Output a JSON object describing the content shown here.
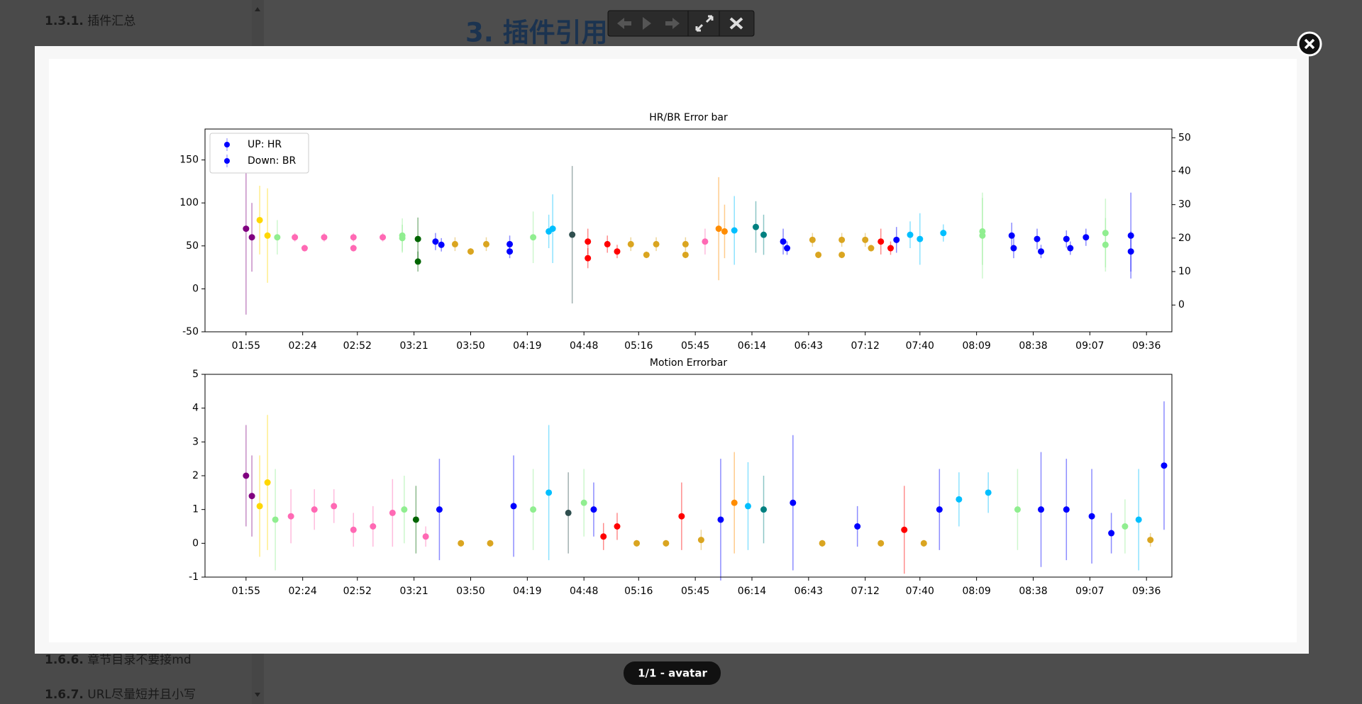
{
  "page": {
    "sidebar": [
      {
        "number": "1.3.1.",
        "title": "插件汇总"
      },
      {
        "number": "1.6.6.",
        "title": "章节目录不要接md"
      },
      {
        "number": "1.6.7.",
        "title": "URL尽量短并且小写"
      }
    ],
    "heading": "3. 插件引用",
    "caption": "1/1 - avatar"
  },
  "chart_data": [
    {
      "type": "scatter",
      "title": "HR/BR Error bar",
      "xlim": [
        94,
        589
      ],
      "ylim": [
        -50,
        186
      ],
      "y2lim": [
        -8,
        52.6
      ],
      "xticks": [
        {
          "value": 115,
          "label": "01:55"
        },
        {
          "value": 144,
          "label": "02:24"
        },
        {
          "value": 172,
          "label": "02:52"
        },
        {
          "value": 201,
          "label": "03:21"
        },
        {
          "value": 230,
          "label": "03:50"
        },
        {
          "value": 259,
          "label": "04:19"
        },
        {
          "value": 288,
          "label": "04:48"
        },
        {
          "value": 316,
          "label": "05:16"
        },
        {
          "value": 345,
          "label": "05:45"
        },
        {
          "value": 374,
          "label": "06:14"
        },
        {
          "value": 403,
          "label": "06:43"
        },
        {
          "value": 432,
          "label": "07:12"
        },
        {
          "value": 460,
          "label": "07:40"
        },
        {
          "value": 489,
          "label": "08:09"
        },
        {
          "value": 518,
          "label": "08:38"
        },
        {
          "value": 547,
          "label": "09:07"
        },
        {
          "value": 576,
          "label": "09:36"
        }
      ],
      "yticks": [
        -50,
        0,
        50,
        100,
        150
      ],
      "y2ticks": [
        0,
        10,
        20,
        30,
        40,
        50
      ],
      "legend": "upper left",
      "series": [
        {
          "name": "UP: HR",
          "color": "#0000ff",
          "x": [
            115,
            118,
            122,
            126,
            131,
            140,
            155,
            170,
            185,
            195,
            203,
            212,
            222,
            238,
            250,
            262,
            272,
            282,
            290,
            300,
            312,
            325,
            340,
            350,
            357,
            365,
            376,
            390,
            405,
            420,
            432,
            440,
            448,
            460,
            472,
            492,
            507,
            520,
            535,
            545,
            555,
            568
          ],
          "values": [
            70,
            60,
            80,
            62,
            60,
            60,
            60,
            60,
            60,
            62,
            58,
            55,
            52,
            52,
            52,
            60,
            70,
            63,
            55,
            52,
            52,
            52,
            52,
            55,
            70,
            68,
            72,
            55,
            57,
            57,
            57,
            55,
            57,
            58,
            65,
            62,
            62,
            58,
            58,
            60,
            65,
            62
          ],
          "errors": [
            100,
            40,
            40,
            55,
            20,
            5,
            5,
            5,
            5,
            20,
            25,
            10,
            8,
            8,
            10,
            30,
            40,
            80,
            15,
            10,
            8,
            8,
            8,
            15,
            60,
            40,
            30,
            15,
            8,
            8,
            8,
            15,
            15,
            30,
            10,
            50,
            15,
            12,
            10,
            10,
            40,
            50
          ],
          "point_colors": [
            "#800080",
            "#800080",
            "#ffd700",
            "#ffd700",
            "#90ee90",
            "#ff69b4",
            "#ff69b4",
            "#ff69b4",
            "#ff69b4",
            "#90ee90",
            "#006400",
            "#0000ff",
            "#daa520",
            "#daa520",
            "#0000ff",
            "#90ee90",
            "#00bfff",
            "#2f4f4f",
            "#ff0000",
            "#ff0000",
            "#daa520",
            "#daa520",
            "#daa520",
            "#ff69b4",
            "#ff8c00",
            "#00bfff",
            "#008080",
            "#0000ff",
            "#daa520",
            "#daa520",
            "#daa520",
            "#ff0000",
            "#0000ff",
            "#00bfff",
            "#00bfff",
            "#90ee90",
            "#0000ff",
            "#0000ff",
            "#0000ff",
            "#0000ff",
            "#90ee90",
            "#0000ff"
          ]
        },
        {
          "name": "Down: BR",
          "color": "#0000ff",
          "axis": "y2",
          "x": [
            145,
            170,
            195,
            203,
            215,
            230,
            250,
            270,
            290,
            305,
            320,
            340,
            360,
            380,
            392,
            408,
            420,
            435,
            445,
            455,
            492,
            508,
            522,
            537,
            555,
            568
          ],
          "values": [
            17,
            17,
            20,
            13,
            18,
            16,
            16,
            22,
            14,
            16,
            15,
            15,
            22,
            21,
            17,
            15,
            15,
            17,
            17,
            21,
            22,
            17,
            16,
            17,
            18,
            16
          ],
          "errors": [
            1,
            1,
            4,
            3,
            2,
            1,
            2,
            5,
            3,
            2,
            1,
            1,
            8,
            6,
            2,
            1,
            1,
            1,
            2,
            4,
            10,
            3,
            2,
            2,
            8,
            6
          ],
          "point_colors": [
            "#ff69b4",
            "#ff69b4",
            "#90ee90",
            "#006400",
            "#0000ff",
            "#daa520",
            "#0000ff",
            "#00bfff",
            "#ff0000",
            "#ff0000",
            "#daa520",
            "#daa520",
            "#ff8c00",
            "#008080",
            "#0000ff",
            "#daa520",
            "#daa520",
            "#daa520",
            "#ff0000",
            "#00bfff",
            "#90ee90",
            "#0000ff",
            "#0000ff",
            "#0000ff",
            "#90ee90",
            "#0000ff"
          ]
        }
      ]
    },
    {
      "type": "scatter",
      "title": "Motion Errorbar",
      "xlim": [
        94,
        589
      ],
      "ylim": [
        -1,
        5
      ],
      "xticks": [
        {
          "value": 115,
          "label": "01:55"
        },
        {
          "value": 144,
          "label": "02:24"
        },
        {
          "value": 172,
          "label": "02:52"
        },
        {
          "value": 201,
          "label": "03:21"
        },
        {
          "value": 230,
          "label": "03:50"
        },
        {
          "value": 259,
          "label": "04:19"
        },
        {
          "value": 288,
          "label": "04:48"
        },
        {
          "value": 316,
          "label": "05:16"
        },
        {
          "value": 345,
          "label": "05:45"
        },
        {
          "value": 374,
          "label": "06:14"
        },
        {
          "value": 403,
          "label": "06:43"
        },
        {
          "value": 432,
          "label": "07:12"
        },
        {
          "value": 460,
          "label": "07:40"
        },
        {
          "value": 489,
          "label": "08:09"
        },
        {
          "value": 518,
          "label": "08:38"
        },
        {
          "value": 547,
          "label": "09:07"
        },
        {
          "value": 576,
          "label": "09:36"
        }
      ],
      "yticks": [
        -1,
        0,
        1,
        2,
        3,
        4,
        5
      ],
      "series": [
        {
          "name": "Motion",
          "color": "#0000ff",
          "x": [
            115,
            118,
            122,
            126,
            130,
            138,
            150,
            160,
            170,
            180,
            190,
            196,
            202,
            207,
            214,
            225,
            240,
            252,
            262,
            270,
            280,
            288,
            293,
            298,
            305,
            315,
            330,
            338,
            348,
            358,
            365,
            372,
            380,
            395,
            410,
            428,
            440,
            452,
            462,
            470,
            480,
            495,
            510,
            522,
            535,
            548,
            558,
            565,
            572,
            578,
            585
          ],
          "values": [
            2,
            1.4,
            1.1,
            1.8,
            0.7,
            0.8,
            1,
            1.1,
            0.4,
            0.5,
            0.9,
            1,
            0.7,
            0.2,
            1,
            0,
            0,
            1.1,
            1,
            1.5,
            0.9,
            1.2,
            1,
            0.2,
            0.5,
            0,
            0,
            0.8,
            0.1,
            0.7,
            1.2,
            1.1,
            1,
            1.2,
            0,
            0.5,
            0,
            0.4,
            0,
            1,
            1.3,
            1.5,
            1,
            1,
            1,
            0.8,
            0.3,
            0.5,
            0.7,
            0.1,
            2.3
          ],
          "errors": [
            1.5,
            1.2,
            1.5,
            2,
            1.5,
            0.8,
            0.6,
            0.5,
            0.5,
            0.6,
            1,
            1,
            1,
            0.3,
            1.5,
            0.1,
            0.1,
            1.5,
            1.2,
            2,
            1.2,
            1,
            0.8,
            0.4,
            0.4,
            0.1,
            0.1,
            1,
            0.3,
            1.8,
            1.5,
            1.3,
            1,
            2,
            0.1,
            0.6,
            0.1,
            1.3,
            0.1,
            1.2,
            0.8,
            0.6,
            1.2,
            1.7,
            1.5,
            1.4,
            0.6,
            0.8,
            1.5,
            0.2,
            1.9
          ],
          "point_colors": [
            "#800080",
            "#800080",
            "#ffd700",
            "#ffd700",
            "#90ee90",
            "#ff69b4",
            "#ff69b4",
            "#ff69b4",
            "#ff69b4",
            "#ff69b4",
            "#ff69b4",
            "#90ee90",
            "#006400",
            "#ff69b4",
            "#0000ff",
            "#daa520",
            "#daa520",
            "#0000ff",
            "#90ee90",
            "#00bfff",
            "#2f4f4f",
            "#90ee90",
            "#0000ff",
            "#ff0000",
            "#ff0000",
            "#daa520",
            "#daa520",
            "#ff0000",
            "#daa520",
            "#0000ff",
            "#ff8c00",
            "#00bfff",
            "#008080",
            "#0000ff",
            "#daa520",
            "#0000ff",
            "#daa520",
            "#ff0000",
            "#daa520",
            "#0000ff",
            "#00bfff",
            "#00bfff",
            "#90ee90",
            "#0000ff",
            "#0000ff",
            "#0000ff",
            "#0000ff",
            "#90ee90",
            "#00bfff",
            "#daa520",
            "#0000ff"
          ]
        }
      ]
    }
  ]
}
